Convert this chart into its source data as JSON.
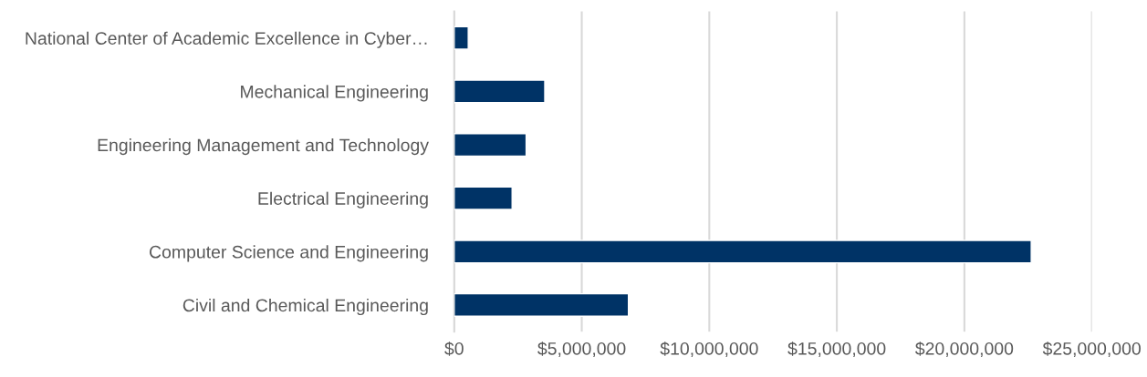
{
  "chart_data": {
    "type": "bar",
    "orientation": "horizontal",
    "categories": [
      "National Center of Academic Excellence in Cyber…",
      "Mechanical Engineering",
      "Engineering Management and Technology",
      "Electrical Engineering",
      "Computer Science and Engineering",
      "Civil and Chemical Engineering"
    ],
    "values": [
      550000,
      3550000,
      2820000,
      2270000,
      22620000,
      6830000
    ],
    "color": "#003366",
    "xlim": [
      0,
      25000000
    ],
    "xticks": [
      {
        "value": 0,
        "label": "$0"
      },
      {
        "value": 5000000,
        "label": "$5,000,000"
      },
      {
        "value": 10000000,
        "label": "$10,000,000"
      },
      {
        "value": 15000000,
        "label": "$15,000,000"
      },
      {
        "value": 20000000,
        "label": "$20,000,000"
      },
      {
        "value": 25000000,
        "label": "$25,000,000"
      }
    ],
    "grid": "x"
  }
}
